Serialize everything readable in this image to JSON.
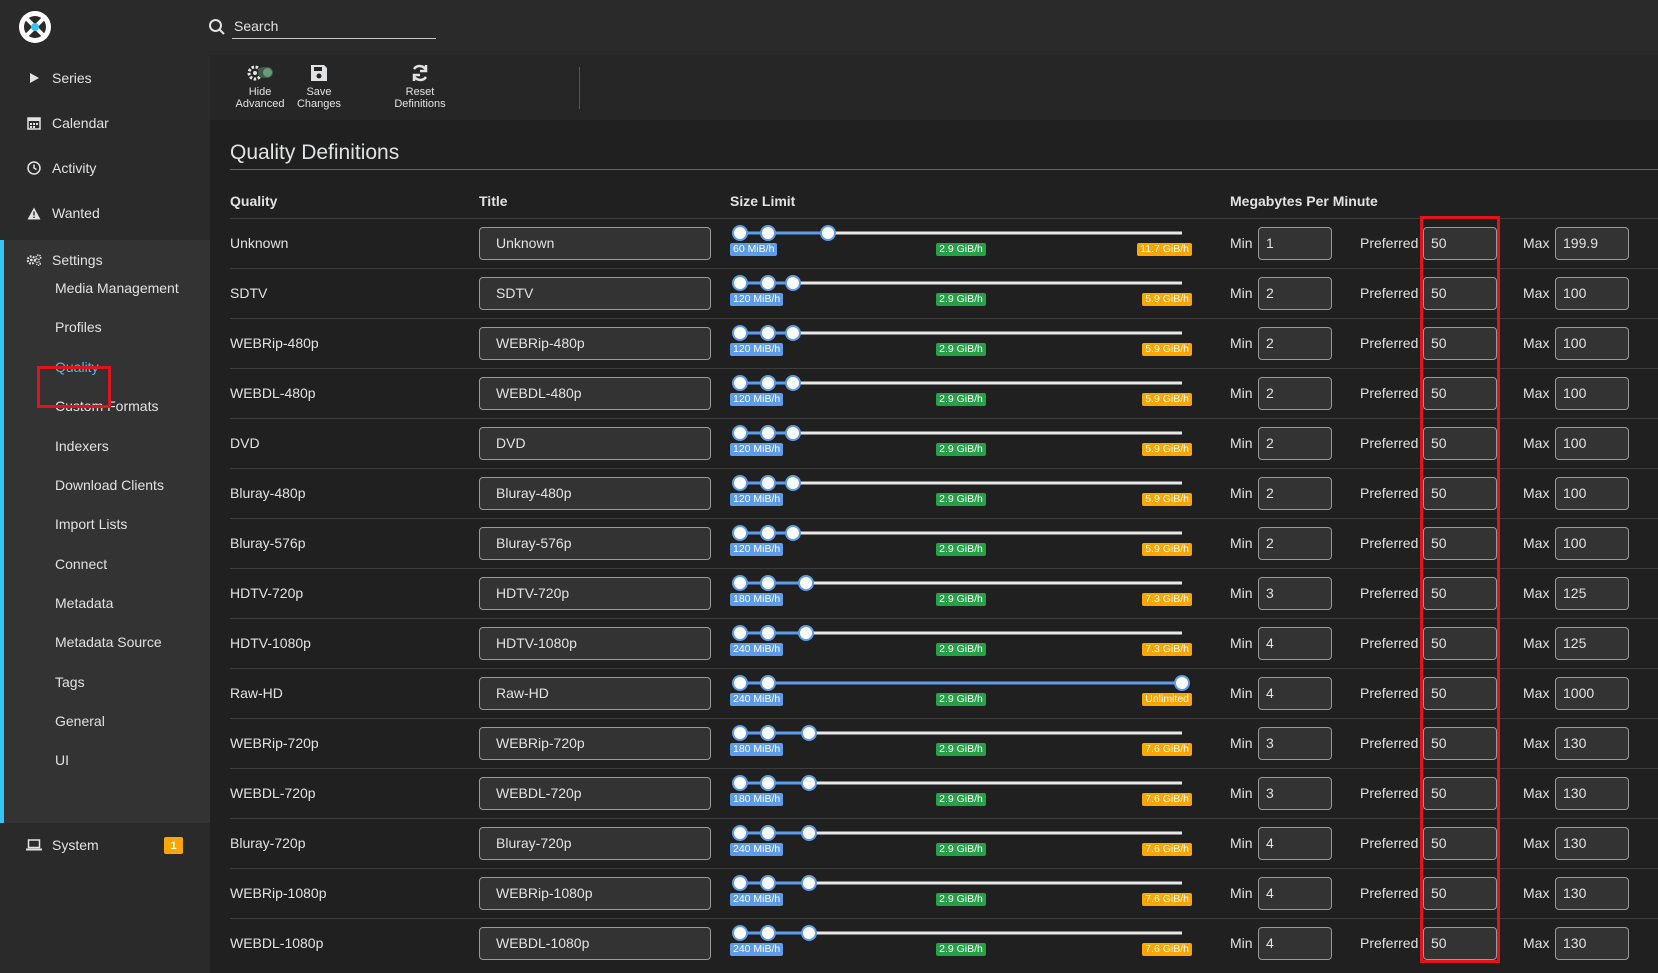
{
  "search": {
    "placeholder": "Search"
  },
  "nav": {
    "series": "Series",
    "calendar": "Calendar",
    "activity": "Activity",
    "wanted": "Wanted",
    "settings": "Settings",
    "settings_items": [
      "Media Management",
      "Profiles",
      "Quality",
      "Custom Formats",
      "Indexers",
      "Download Clients",
      "Import Lists",
      "Connect",
      "Metadata",
      "Metadata Source",
      "Tags",
      "General",
      "UI"
    ],
    "system": "System",
    "system_badge": "1"
  },
  "toolbar": {
    "hide_advanced": [
      "Hide",
      "Advanced"
    ],
    "save_changes": [
      "Save",
      "Changes"
    ],
    "reset_definitions": [
      "Reset",
      "Definitions"
    ]
  },
  "page": {
    "title": "Quality Definitions"
  },
  "table": {
    "headers": {
      "quality": "Quality",
      "title": "Title",
      "size_limit": "Size Limit",
      "mbpm": "Megabytes Per Minute"
    },
    "field_labels": {
      "min": "Min",
      "preferred": "Preferred",
      "max": "Max"
    },
    "rows": [
      {
        "quality": "Unknown",
        "title": "Unknown",
        "low": "60 MiB/h",
        "mid": "2.9 GiB/h",
        "high": "11.7 GiB/h",
        "min": "1",
        "preferred": "50",
        "max": "199.9",
        "max_fraction": 0.2
      },
      {
        "quality": "SDTV",
        "title": "SDTV",
        "low": "120 MiB/h",
        "mid": "2.9 GiB/h",
        "high": "5.9 GiB/h",
        "min": "2",
        "preferred": "50",
        "max": "100",
        "max_fraction": 0.12
      },
      {
        "quality": "WEBRip-480p",
        "title": "WEBRip-480p",
        "low": "120 MiB/h",
        "mid": "2.9 GiB/h",
        "high": "5.9 GiB/h",
        "min": "2",
        "preferred": "50",
        "max": "100",
        "max_fraction": 0.12
      },
      {
        "quality": "WEBDL-480p",
        "title": "WEBDL-480p",
        "low": "120 MiB/h",
        "mid": "2.9 GiB/h",
        "high": "5.9 GiB/h",
        "min": "2",
        "preferred": "50",
        "max": "100",
        "max_fraction": 0.12
      },
      {
        "quality": "DVD",
        "title": "DVD",
        "low": "120 MiB/h",
        "mid": "2.9 GiB/h",
        "high": "5.9 GiB/h",
        "min": "2",
        "preferred": "50",
        "max": "100",
        "max_fraction": 0.12
      },
      {
        "quality": "Bluray-480p",
        "title": "Bluray-480p",
        "low": "120 MiB/h",
        "mid": "2.9 GiB/h",
        "high": "5.9 GiB/h",
        "min": "2",
        "preferred": "50",
        "max": "100",
        "max_fraction": 0.12
      },
      {
        "quality": "Bluray-576p",
        "title": "Bluray-576p",
        "low": "120 MiB/h",
        "mid": "2.9 GiB/h",
        "high": "5.9 GiB/h",
        "min": "2",
        "preferred": "50",
        "max": "100",
        "max_fraction": 0.12
      },
      {
        "quality": "HDTV-720p",
        "title": "HDTV-720p",
        "low": "180 MiB/h",
        "mid": "2.9 GiB/h",
        "high": "7.3 GiB/h",
        "min": "3",
        "preferred": "50",
        "max": "125",
        "max_fraction": 0.15
      },
      {
        "quality": "HDTV-1080p",
        "title": "HDTV-1080p",
        "low": "240 MiB/h",
        "mid": "2.9 GiB/h",
        "high": "7.3 GiB/h",
        "min": "4",
        "preferred": "50",
        "max": "125",
        "max_fraction": 0.15
      },
      {
        "quality": "Raw-HD",
        "title": "Raw-HD",
        "low": "240 MiB/h",
        "mid": "2.9 GiB/h",
        "high": "Unlimited",
        "min": "4",
        "preferred": "50",
        "max": "1000",
        "max_fraction": 1.0
      },
      {
        "quality": "WEBRip-720p",
        "title": "WEBRip-720p",
        "low": "180 MiB/h",
        "mid": "2.9 GiB/h",
        "high": "7.6 GiB/h",
        "min": "3",
        "preferred": "50",
        "max": "130",
        "max_fraction": 0.155
      },
      {
        "quality": "WEBDL-720p",
        "title": "WEBDL-720p",
        "low": "180 MiB/h",
        "mid": "2.9 GiB/h",
        "high": "7.6 GiB/h",
        "min": "3",
        "preferred": "50",
        "max": "130",
        "max_fraction": 0.155
      },
      {
        "quality": "Bluray-720p",
        "title": "Bluray-720p",
        "low": "240 MiB/h",
        "mid": "2.9 GiB/h",
        "high": "7.6 GiB/h",
        "min": "4",
        "preferred": "50",
        "max": "130",
        "max_fraction": 0.155
      },
      {
        "quality": "WEBRip-1080p",
        "title": "WEBRip-1080p",
        "low": "240 MiB/h",
        "mid": "2.9 GiB/h",
        "high": "7.6 GiB/h",
        "min": "4",
        "preferred": "50",
        "max": "130",
        "max_fraction": 0.155
      },
      {
        "quality": "WEBDL-1080p",
        "title": "WEBDL-1080p",
        "low": "240 MiB/h",
        "mid": "2.9 GiB/h",
        "high": "7.6 GiB/h",
        "min": "4",
        "preferred": "50",
        "max": "130",
        "max_fraction": 0.155
      }
    ]
  },
  "colors": {
    "accent": "#35c5f4",
    "highlight_box": "#e0141a",
    "slider": "#5d9cec",
    "mid_label": "#27a147",
    "high_label": "#ffa500"
  },
  "icons": [
    "logo",
    "search-icon",
    "play-icon",
    "calendar-icon",
    "clock-icon",
    "warning-icon",
    "gears-icon",
    "laptop-icon",
    "toggle-icon",
    "save-icon",
    "refresh-icon"
  ]
}
